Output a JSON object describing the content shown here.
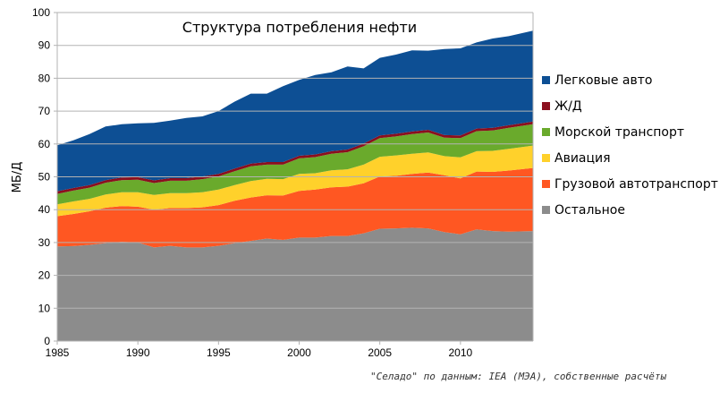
{
  "chart_data": {
    "type": "area",
    "stacked": true,
    "title": "Структура потребления нефти",
    "ylabel": "МБ/Д",
    "xlabel": "",
    "xlim": [
      1985,
      2014.5
    ],
    "ylim": [
      0,
      100
    ],
    "x_ticks": [
      1985,
      1990,
      1995,
      2000,
      2005,
      2010
    ],
    "y_ticks": [
      0,
      10,
      20,
      30,
      40,
      50,
      60,
      70,
      80,
      90,
      100
    ],
    "grid": "horizontal",
    "legend_position": "right",
    "x": [
      1985,
      1986,
      1987,
      1988,
      1989,
      1990,
      1991,
      1992,
      1993,
      1994,
      1995,
      1996,
      1997,
      1998,
      1999,
      2000,
      2001,
      2002,
      2003,
      2004,
      2005,
      2006,
      2007,
      2008,
      2009,
      2010,
      2011,
      2012,
      2013,
      2014.5
    ],
    "series": [
      {
        "name": "Остальное",
        "color": "#8c8c8c",
        "values": [
          28.8,
          28.9,
          29.3,
          29.8,
          30.2,
          30.0,
          28.5,
          29.0,
          28.5,
          28.5,
          29.0,
          29.8,
          30.5,
          31.2,
          30.8,
          31.5,
          31.5,
          32.0,
          32.0,
          32.8,
          34.2,
          34.3,
          34.5,
          34.3,
          33.2,
          32.5,
          34.0,
          33.5,
          33.3,
          33.5
        ]
      },
      {
        "name": "Грузовой автотранспорт",
        "color": "#ff5722",
        "values": [
          9.2,
          9.8,
          10.2,
          10.8,
          10.9,
          10.9,
          11.5,
          11.5,
          12.0,
          12.2,
          12.4,
          12.9,
          13.2,
          13.2,
          13.5,
          14.2,
          14.6,
          14.8,
          15.0,
          15.2,
          15.9,
          16.0,
          16.4,
          17.0,
          17.3,
          17.0,
          17.6,
          18.0,
          18.6,
          19.2
        ]
      },
      {
        "name": "Авиация",
        "color": "#ffd12b",
        "values": [
          3.6,
          3.8,
          3.8,
          4.0,
          4.2,
          4.4,
          4.5,
          4.5,
          4.5,
          4.6,
          4.7,
          4.8,
          5.0,
          5.0,
          5.0,
          5.2,
          5.0,
          5.2,
          5.3,
          5.7,
          6.0,
          6.2,
          6.1,
          6.1,
          5.8,
          6.4,
          6.2,
          6.4,
          6.6,
          6.8
        ]
      },
      {
        "name": "Морской транспорт",
        "color": "#6aaa2c",
        "values": [
          3.2,
          3.3,
          3.4,
          3.6,
          3.7,
          3.8,
          3.6,
          3.8,
          3.8,
          4.0,
          4.0,
          4.2,
          4.5,
          4.3,
          4.4,
          4.7,
          4.9,
          5.0,
          5.2,
          5.6,
          5.7,
          5.8,
          6.0,
          6.1,
          5.6,
          5.9,
          6.1,
          6.2,
          6.4,
          6.5
        ]
      },
      {
        "name": "Ж/Д",
        "color": "#8b0f1e",
        "values": [
          0.8,
          0.8,
          0.8,
          0.8,
          0.8,
          0.8,
          0.8,
          0.8,
          0.8,
          0.8,
          0.8,
          0.8,
          0.8,
          0.8,
          0.8,
          0.8,
          0.8,
          0.8,
          0.8,
          0.8,
          0.8,
          0.8,
          0.8,
          0.8,
          0.8,
          0.8,
          0.8,
          0.8,
          0.8,
          0.8
        ]
      },
      {
        "name": "Легковые авто",
        "color": "#0d4f94",
        "values": [
          14.0,
          14.5,
          15.5,
          16.3,
          16.2,
          16.4,
          17.5,
          17.5,
          18.3,
          18.3,
          19.1,
          20.4,
          21.3,
          20.8,
          23.1,
          23.1,
          24.2,
          24.0,
          25.3,
          22.9,
          23.6,
          24.1,
          24.7,
          24.1,
          26.2,
          26.5,
          26.2,
          27.2,
          27.1,
          27.7
        ]
      }
    ]
  },
  "source_note": "\"Селадо\" по данным: IEA (МЭА), собственные расчёты"
}
